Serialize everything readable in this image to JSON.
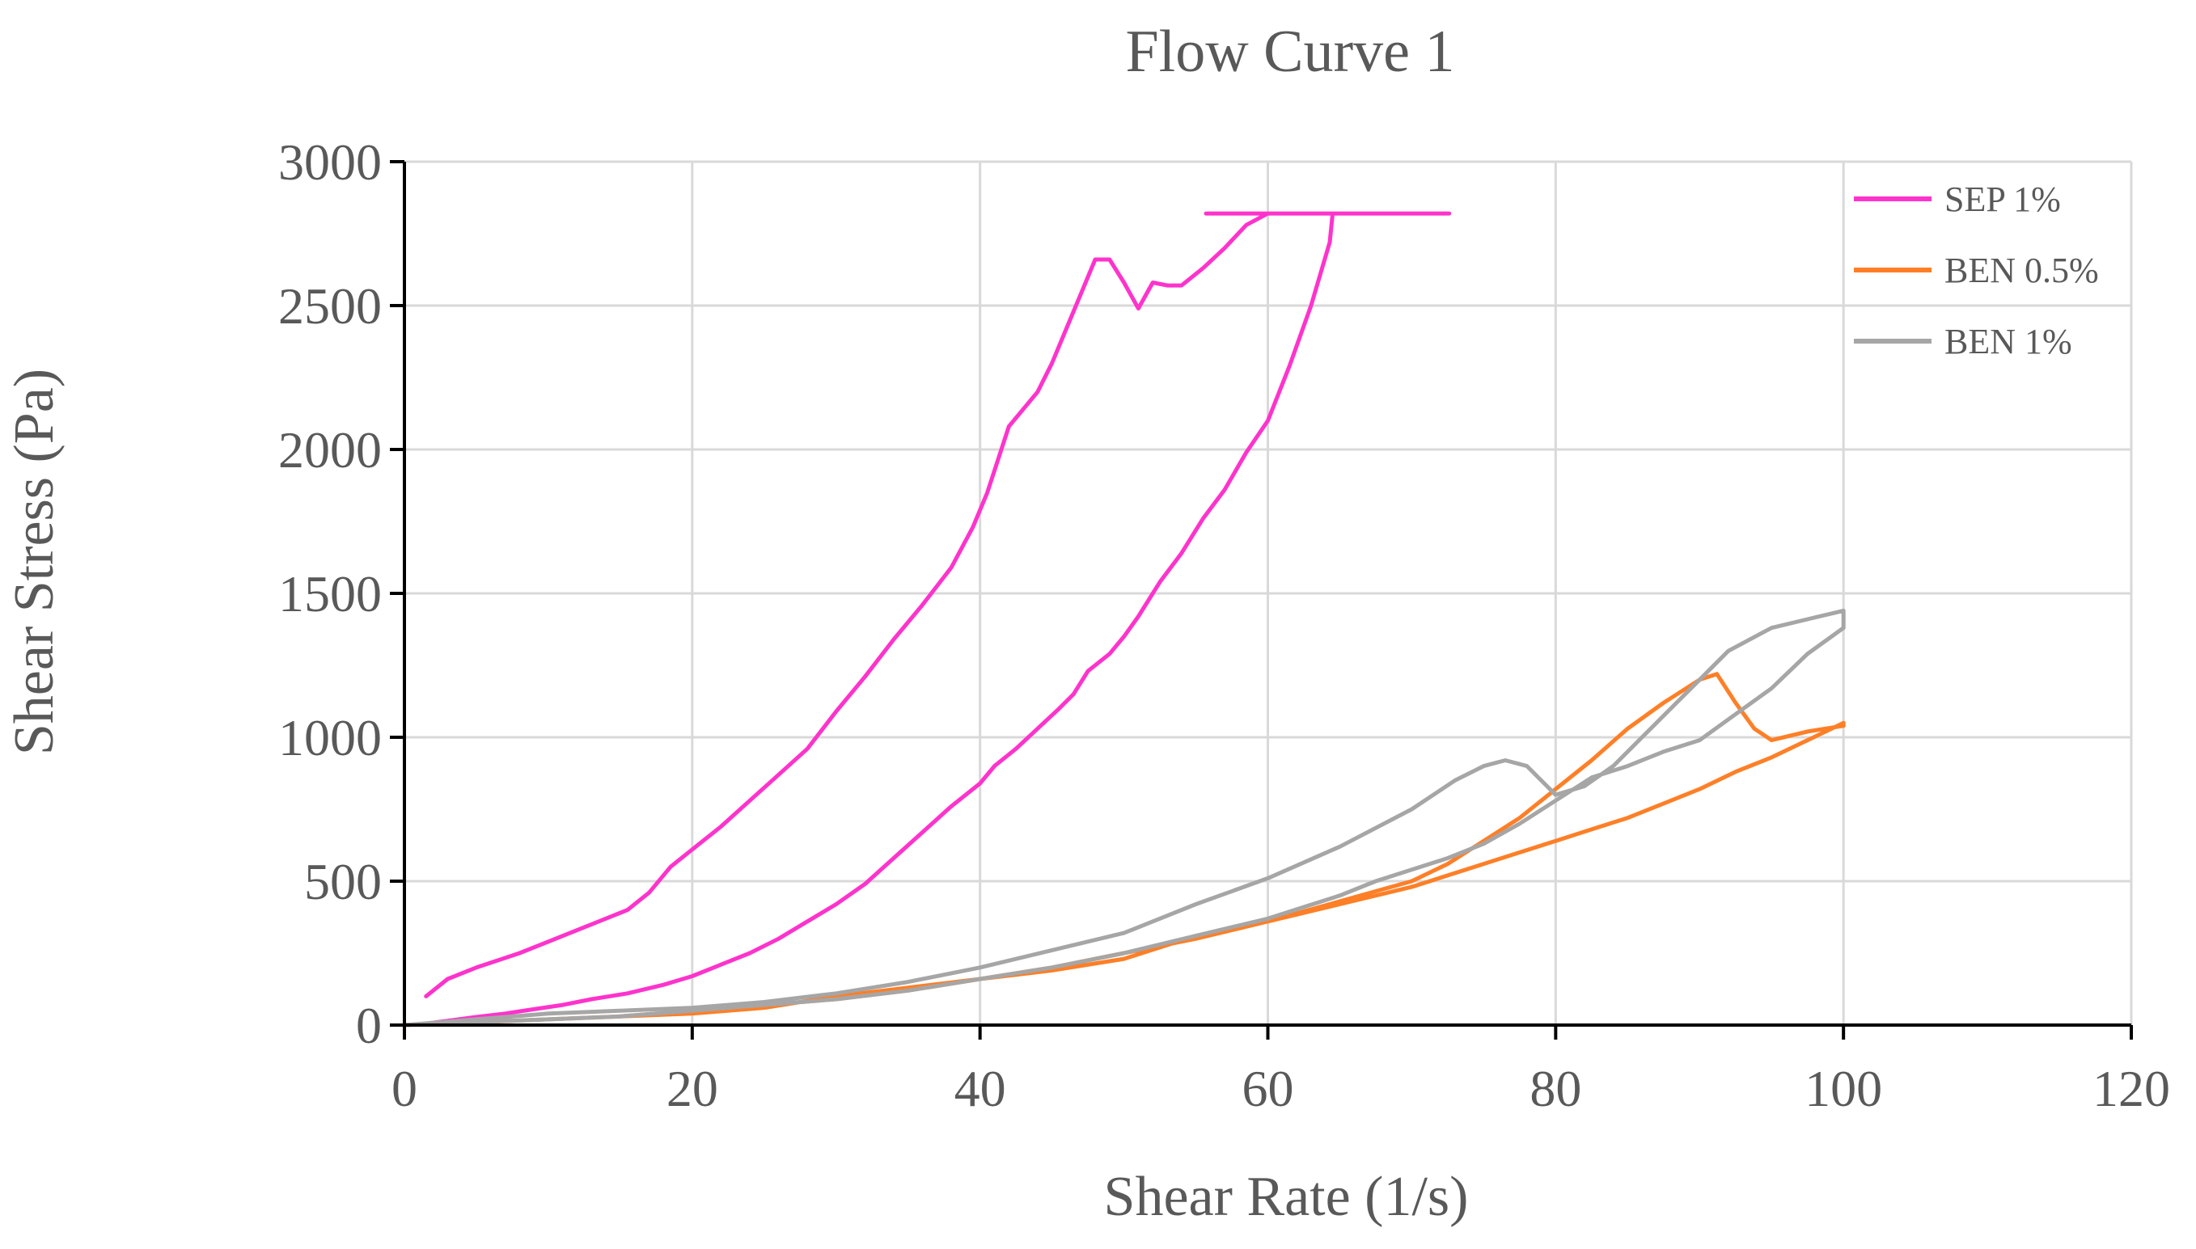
{
  "chart_data": {
    "type": "line",
    "title": "Flow Curve 1",
    "xlabel": "Shear Rate (1/s)",
    "ylabel": "Shear Stress (Pa)",
    "xlim": [
      0,
      120
    ],
    "ylim": [
      0,
      3000
    ],
    "xticks": [
      0,
      20,
      40,
      60,
      80,
      100,
      120
    ],
    "yticks": [
      0,
      500,
      1000,
      1500,
      2000,
      2500,
      3000
    ],
    "xtick_labels": [
      "0",
      "20",
      "40",
      "60",
      "80",
      "100",
      "120"
    ],
    "ytick_labels": [
      "0",
      "500",
      "1000",
      "1500",
      "2000",
      "2500",
      "3000"
    ],
    "grid": true,
    "legend_position": "top-right",
    "series": [
      {
        "name": "SEP 1%",
        "color": "#ff33cc",
        "x": [
          1.5,
          3,
          5,
          8,
          10,
          13,
          15.5,
          17,
          18.5,
          20,
          22,
          24,
          26,
          28,
          30,
          32,
          34,
          36,
          38,
          39.5,
          40.5,
          42,
          44,
          45,
          46,
          47,
          48,
          49,
          50,
          51,
          52,
          53,
          54,
          55.5,
          57,
          58.5,
          60,
          61.5,
          63,
          64.5,
          64.5,
          55.7,
          72.6,
          64.5,
          64.3,
          63,
          61.5,
          60,
          58.5,
          57,
          55.5,
          54,
          52.5,
          51,
          50,
          49,
          47.5,
          46.5,
          45.5,
          44,
          42.5,
          41,
          40,
          38,
          36,
          34,
          32,
          30,
          28,
          26,
          24,
          22,
          20,
          18,
          15.5,
          13,
          11,
          9,
          7,
          5,
          3,
          1.5,
          0
        ],
        "y": [
          100,
          160,
          200,
          250,
          290,
          350,
          400,
          460,
          550,
          610,
          690,
          780,
          870,
          960,
          1090,
          1210,
          1340,
          1460,
          1590,
          1730,
          1850,
          2080,
          2200,
          2300,
          2420,
          2540,
          2660,
          2660,
          2580,
          2490,
          2580,
          2570,
          2570,
          2630,
          2700,
          2780,
          2820,
          2820,
          2820,
          2820,
          2820,
          2820,
          2820,
          2820,
          2720,
          2500,
          2290,
          2100,
          1990,
          1860,
          1760,
          1640,
          1540,
          1420,
          1350,
          1290,
          1230,
          1150,
          1100,
          1030,
          960,
          900,
          840,
          760,
          670,
          580,
          490,
          420,
          360,
          300,
          250,
          210,
          170,
          140,
          110,
          90,
          70,
          55,
          40,
          28,
          15,
          5,
          0
        ]
      },
      {
        "name": "BEN 0.5%",
        "color": "#ff7f27",
        "x": [
          0,
          10,
          20,
          25,
          30,
          35,
          40,
          45,
          50,
          55,
          60,
          65,
          70,
          72.5,
          75,
          77.5,
          80,
          82.5,
          85,
          87.5,
          90,
          91.2,
          92.5,
          93.8,
          95,
          97.5,
          100,
          100,
          97.5,
          95,
          92.5,
          90,
          87.5,
          85,
          82.5,
          80,
          77.5,
          75,
          70,
          65,
          60,
          55,
          50,
          45,
          40,
          35,
          30,
          25,
          20,
          15,
          10,
          5,
          0
        ],
        "y": [
          0,
          20,
          40,
          60,
          100,
          130,
          160,
          190,
          230,
          310,
          360,
          430,
          500,
          560,
          640,
          720,
          820,
          920,
          1030,
          1120,
          1200,
          1220,
          1120,
          1030,
          990,
          1020,
          1040,
          1050,
          990,
          930,
          880,
          820,
          770,
          720,
          680,
          640,
          600,
          560,
          480,
          420,
          360,
          300,
          250,
          200,
          160,
          120,
          90,
          70,
          50,
          30,
          20,
          10,
          0
        ]
      },
      {
        "name": "BEN 1%",
        "color": "#a6a6a6",
        "x": [
          0,
          5,
          10,
          15,
          20,
          25,
          30,
          35,
          40,
          45,
          50,
          55,
          60,
          65,
          70,
          73,
          75,
          76.5,
          78,
          79,
          80,
          82,
          84,
          86,
          88,
          90,
          92,
          95,
          97.5,
          100,
          100,
          97.5,
          95,
          92.5,
          90,
          87.5,
          85,
          82.5,
          80,
          77.5,
          75,
          72.5,
          70,
          67.5,
          65,
          62.5,
          60,
          55,
          50,
          45,
          40,
          35,
          30,
          25,
          20,
          15,
          10,
          5,
          0
        ],
        "y": [
          0,
          20,
          40,
          50,
          60,
          80,
          110,
          150,
          200,
          260,
          320,
          420,
          510,
          620,
          750,
          850,
          900,
          920,
          900,
          850,
          800,
          830,
          900,
          1000,
          1100,
          1200,
          1300,
          1380,
          1410,
          1440,
          1380,
          1290,
          1170,
          1080,
          990,
          950,
          900,
          860,
          780,
          700,
          630,
          580,
          540,
          500,
          450,
          410,
          370,
          310,
          250,
          200,
          160,
          120,
          90,
          70,
          50,
          30,
          20,
          10,
          0
        ]
      }
    ]
  }
}
